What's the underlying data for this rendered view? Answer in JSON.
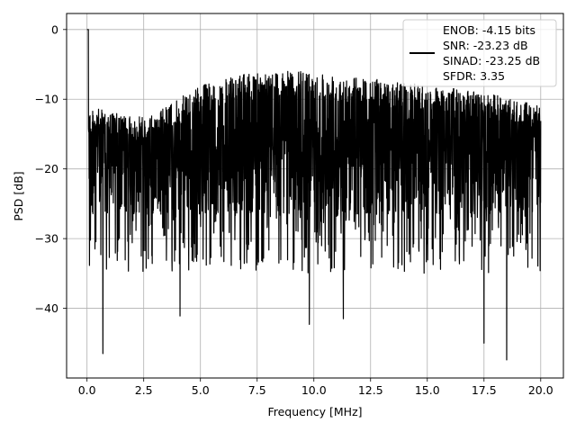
{
  "chart_data": {
    "type": "line",
    "title": "",
    "xlabel": "Frequency [MHz]",
    "ylabel": "PSD [dB]",
    "xlim": [
      -0.9,
      21.0
    ],
    "ylim": [
      -50,
      2.3
    ],
    "xticks": [
      0.0,
      2.5,
      5.0,
      7.5,
      10.0,
      12.5,
      15.0,
      17.5,
      20.0
    ],
    "xtick_labels": [
      "0.0",
      "2.5",
      "5.0",
      "7.5",
      "10.0",
      "12.5",
      "15.0",
      "17.5",
      "20.0"
    ],
    "yticks": [
      0,
      -10,
      -20,
      -30,
      -40
    ],
    "ytick_labels": [
      "0",
      "−10",
      "−20",
      "−30",
      "−40"
    ],
    "grid": true,
    "legend_position": "top-right",
    "legend_lines": [
      "ENOB: -4.15 bits",
      "SNR: -23.23 dB",
      "SINAD: -23.25 dB",
      "SFDR: 3.35"
    ],
    "series": [
      {
        "color": "#000000",
        "x_range": [
          0.0,
          20.0
        ],
        "peak": {
          "x": 0.05,
          "y": 0.0
        },
        "noise_floor_mean": -19.5,
        "envelope_upper": [
          [
            0.0,
            -11
          ],
          [
            2.5,
            -13
          ],
          [
            5.0,
            -8
          ],
          [
            7.5,
            -6
          ],
          [
            10.0,
            -6
          ],
          [
            12.5,
            -7
          ],
          [
            15.0,
            -8
          ],
          [
            17.5,
            -9
          ],
          [
            20.0,
            -11
          ]
        ],
        "notable_minima": [
          {
            "x": 0.7,
            "y": -46.5
          },
          {
            "x": 4.1,
            "y": -41.1
          },
          {
            "x": 9.8,
            "y": -42.3
          },
          {
            "x": 11.3,
            "y": -41.5
          },
          {
            "x": 17.5,
            "y": -45.0
          },
          {
            "x": 18.5,
            "y": -47.4
          }
        ]
      }
    ]
  }
}
